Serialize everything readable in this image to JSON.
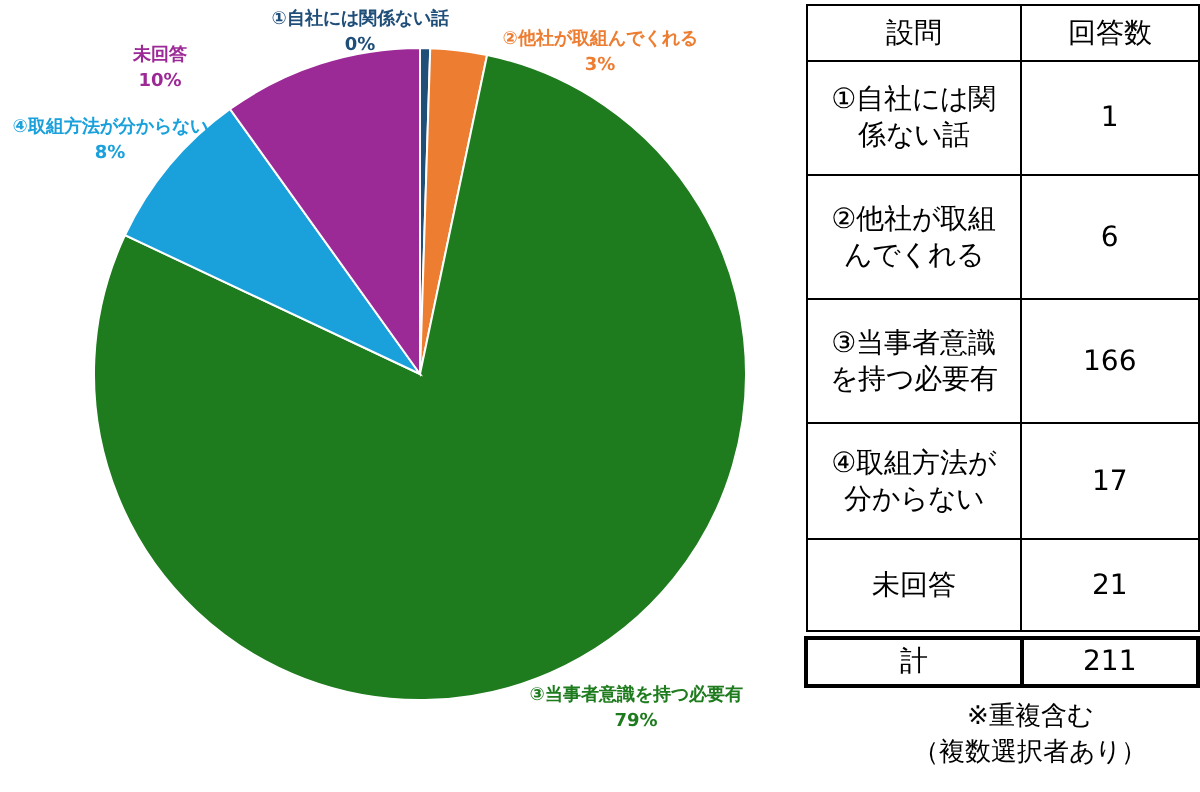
{
  "chart_data": [
    {
      "type": "pie",
      "categories": [
        "①自社には関係ない話",
        "②他社が取組んでくれる",
        "③当事者意識を持つ必要有",
        "④取組方法が分からない",
        "未回答"
      ],
      "values": [
        0.5,
        2.8,
        78.7,
        8.1,
        9.9
      ],
      "colors": [
        "#1f4e79",
        "#ed7d31",
        "#1e7b1e",
        "#1aa1dc",
        "#9c2a96"
      ],
      "value_labels": [
        "0%",
        "3%",
        "79%",
        "8%",
        "10%"
      ]
    },
    {
      "type": "other",
      "xlabel": "設問",
      "ylabel": "回答数",
      "categories": [
        "①自社には関係ない話",
        "②他社が取組んでくれる",
        "③当事者意識を持つ必要有",
        "④取組方法が分からない",
        "未回答"
      ],
      "values": [
        1,
        6,
        166,
        17,
        21
      ],
      "data_labels": true,
      "annotations": [
        "計",
        "211",
        "※重複含む",
        "（複数選択者あり）"
      ]
    }
  ]
}
